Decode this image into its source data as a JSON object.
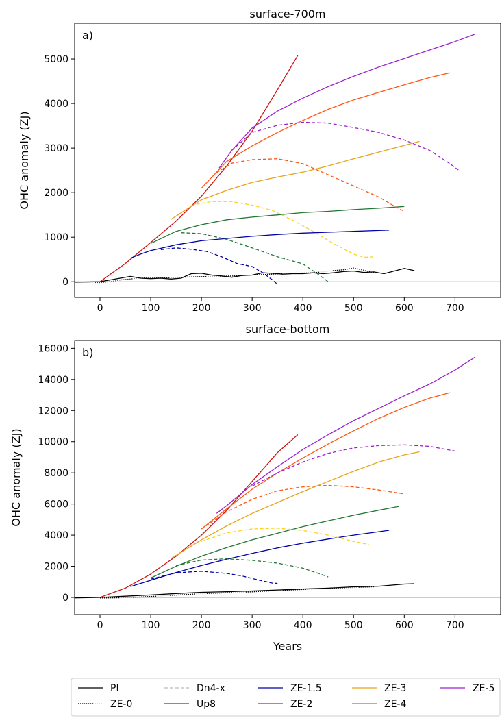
{
  "chart_data": [
    {
      "type": "line",
      "panel_label": "a)",
      "title": "surface-700m",
      "xlabel": "",
      "ylabel": "OHC anomaly (ZJ)",
      "xlim": [
        -50,
        790
      ],
      "ylim": [
        -350,
        5800
      ],
      "xticks": [
        0,
        100,
        200,
        300,
        400,
        500,
        600,
        700
      ],
      "yticks": [
        0,
        1000,
        2000,
        3000,
        4000,
        5000
      ],
      "series": [
        {
          "name": "PI",
          "color": "#000000",
          "dash": "solid",
          "x": [
            -50,
            0,
            20,
            40,
            60,
            80,
            100,
            120,
            140,
            160,
            180,
            200,
            220,
            240,
            260,
            280,
            300,
            320,
            340,
            360,
            380,
            400,
            420,
            440,
            460,
            480,
            500,
            520,
            540,
            560,
            580,
            600,
            620
          ],
          "y": [
            -10,
            0,
            40,
            80,
            120,
            80,
            70,
            80,
            60,
            80,
            180,
            190,
            150,
            130,
            100,
            140,
            150,
            200,
            190,
            170,
            180,
            180,
            200,
            180,
            200,
            230,
            240,
            210,
            220,
            180,
            240,
            300,
            250
          ]
        },
        {
          "name": "ZE-0",
          "color": "#000000",
          "dash": "dotted",
          "x": [
            -10,
            0,
            20,
            40,
            60,
            80,
            100,
            140,
            180,
            220,
            260,
            300,
            340,
            380,
            420,
            460,
            480,
            500,
            520,
            540
          ],
          "y": [
            -20,
            -20,
            0,
            40,
            60,
            90,
            80,
            90,
            110,
            120,
            130,
            150,
            170,
            190,
            200,
            250,
            270,
            310,
            260,
            200
          ]
        },
        {
          "name": "Dn4-x",
          "color": "#bbbbbb",
          "dash": "dashed",
          "x": [],
          "y": []
        },
        {
          "name": "Up8",
          "color": "#cc1111",
          "dash": "solid",
          "x": [
            0,
            50,
            100,
            150,
            200,
            250,
            300,
            350,
            390
          ],
          "y": [
            0,
            410,
            880,
            1360,
            1920,
            2600,
            3380,
            4310,
            5080
          ]
        },
        {
          "name": "ZE-1.5",
          "color": "#0000aa",
          "dash": "solid",
          "x": [
            60,
            80,
            100,
            150,
            200,
            250,
            300,
            350,
            400,
            450,
            500,
            550,
            570
          ],
          "y": [
            530,
            620,
            700,
            830,
            920,
            970,
            1020,
            1060,
            1090,
            1110,
            1130,
            1150,
            1160
          ]
        },
        {
          "name": "ZE-1.5 ramp-down",
          "color": "#0000aa",
          "dash": "dashed",
          "x": [
            120,
            150,
            180,
            210,
            240,
            270,
            300,
            320,
            340,
            350
          ],
          "y": [
            720,
            760,
            730,
            680,
            560,
            410,
            340,
            210,
            40,
            -60
          ]
        },
        {
          "name": "ZE-2",
          "color": "#227733",
          "dash": "solid",
          "x": [
            100,
            150,
            200,
            250,
            300,
            350,
            400,
            450,
            500,
            550,
            600
          ],
          "y": [
            860,
            1130,
            1280,
            1390,
            1450,
            1500,
            1550,
            1580,
            1620,
            1650,
            1690
          ]
        },
        {
          "name": "ZE-2 ramp-down",
          "color": "#227733",
          "dash": "dashed",
          "x": [
            160,
            200,
            250,
            300,
            350,
            400,
            430,
            450
          ],
          "y": [
            1100,
            1080,
            950,
            760,
            560,
            400,
            170,
            0
          ]
        },
        {
          "name": "ZE-3",
          "color": "#e8a317",
          "dash": "solid",
          "x": [
            140,
            200,
            250,
            300,
            350,
            400,
            450,
            500,
            550,
            600,
            630
          ],
          "y": [
            1400,
            1840,
            2050,
            2230,
            2350,
            2460,
            2600,
            2760,
            2910,
            3060,
            3150
          ]
        },
        {
          "name": "ZE-3 ramp-down",
          "color": "#ffd21f",
          "dash": "dashed",
          "x": [
            190,
            220,
            260,
            300,
            340,
            380,
            420,
            460,
            500,
            520,
            540
          ],
          "y": [
            1740,
            1800,
            1800,
            1720,
            1600,
            1380,
            1130,
            860,
            620,
            550,
            560
          ]
        },
        {
          "name": "ZE-4",
          "color": "#ff5511",
          "dash": "solid",
          "x": [
            200,
            250,
            300,
            350,
            400,
            450,
            500,
            550,
            600,
            650,
            690
          ],
          "y": [
            2100,
            2700,
            3050,
            3350,
            3620,
            3870,
            4080,
            4250,
            4420,
            4580,
            4690
          ]
        },
        {
          "name": "ZE-4 ramp-down",
          "color": "#ff5511",
          "dash": "dashed",
          "x": [
            230,
            260,
            300,
            350,
            400,
            450,
            500,
            550,
            580,
            600
          ],
          "y": [
            2450,
            2660,
            2740,
            2760,
            2650,
            2400,
            2150,
            1900,
            1700,
            1580
          ]
        },
        {
          "name": "ZE-5",
          "color": "#9a22cc",
          "dash": "solid",
          "x": [
            235,
            260,
            300,
            350,
            400,
            450,
            500,
            550,
            600,
            650,
            700,
            740
          ],
          "y": [
            2550,
            2950,
            3450,
            3830,
            4120,
            4380,
            4610,
            4820,
            5010,
            5200,
            5390,
            5560
          ]
        },
        {
          "name": "ZE-5 ramp-down",
          "color": "#9a22cc",
          "dash": "dashed",
          "x": [
            260,
            300,
            350,
            400,
            450,
            500,
            550,
            600,
            650,
            690,
            710
          ],
          "y": [
            2950,
            3350,
            3510,
            3580,
            3560,
            3460,
            3350,
            3180,
            2950,
            2650,
            2480
          ]
        }
      ]
    },
    {
      "type": "line",
      "panel_label": "b)",
      "title": "surface-bottom",
      "xlabel": "Years",
      "ylabel": "OHC anomaly (ZJ)",
      "xlim": [
        -50,
        790
      ],
      "ylim": [
        -1100,
        16500
      ],
      "xticks": [
        0,
        100,
        200,
        300,
        400,
        500,
        600,
        700
      ],
      "yticks": [
        0,
        2000,
        4000,
        6000,
        8000,
        10000,
        12000,
        14000,
        16000
      ],
      "series": [
        {
          "name": "PI",
          "color": "#000000",
          "dash": "solid",
          "x": [
            -50,
            0,
            50,
            100,
            150,
            200,
            250,
            300,
            350,
            400,
            450,
            500,
            550,
            600,
            620
          ],
          "y": [
            -30,
            0,
            80,
            160,
            250,
            330,
            370,
            420,
            480,
            540,
            600,
            680,
            720,
            860,
            880
          ]
        },
        {
          "name": "ZE-0",
          "color": "#000000",
          "dash": "dotted",
          "x": [
            0,
            50,
            100,
            150,
            200,
            250,
            300,
            350,
            400,
            450,
            500,
            540
          ],
          "y": [
            -40,
            -20,
            60,
            150,
            240,
            300,
            360,
            440,
            510,
            590,
            640,
            680
          ]
        },
        {
          "name": "Dn4-x",
          "color": "#bbbbbb",
          "dash": "dashed",
          "x": [],
          "y": []
        },
        {
          "name": "Up8",
          "color": "#cc1111",
          "dash": "solid",
          "x": [
            0,
            50,
            100,
            150,
            200,
            250,
            300,
            350,
            390
          ],
          "y": [
            0,
            600,
            1500,
            2650,
            4000,
            5600,
            7450,
            9300,
            10450
          ]
        },
        {
          "name": "ZE-1.5",
          "color": "#0000aa",
          "dash": "solid",
          "x": [
            60,
            100,
            150,
            200,
            250,
            300,
            350,
            400,
            450,
            500,
            550,
            570
          ],
          "y": [
            700,
            1100,
            1600,
            2050,
            2450,
            2830,
            3180,
            3480,
            3750,
            4000,
            4220,
            4310
          ]
        },
        {
          "name": "ZE-1.5 ramp-down",
          "color": "#0000aa",
          "dash": "dashed",
          "x": [
            100,
            150,
            200,
            250,
            280,
            310,
            340,
            350
          ],
          "y": [
            1180,
            1580,
            1680,
            1540,
            1380,
            1140,
            920,
            900
          ]
        },
        {
          "name": "ZE-2",
          "color": "#227733",
          "dash": "solid",
          "x": [
            100,
            150,
            200,
            250,
            300,
            350,
            400,
            450,
            500,
            550,
            590
          ],
          "y": [
            1250,
            2000,
            2650,
            3200,
            3700,
            4120,
            4550,
            4920,
            5280,
            5600,
            5850
          ]
        },
        {
          "name": "ZE-2 ramp-down",
          "color": "#227733",
          "dash": "dashed",
          "x": [
            150,
            200,
            250,
            300,
            350,
            400,
            430,
            450
          ],
          "y": [
            2050,
            2400,
            2480,
            2380,
            2200,
            1880,
            1550,
            1320
          ]
        },
        {
          "name": "ZE-3",
          "color": "#e8a317",
          "dash": "solid",
          "x": [
            140,
            200,
            250,
            300,
            350,
            400,
            450,
            500,
            550,
            600,
            630
          ],
          "y": [
            2500,
            3700,
            4600,
            5400,
            6100,
            6800,
            7450,
            8100,
            8700,
            9150,
            9350
          ]
        },
        {
          "name": "ZE-3 ramp-down",
          "color": "#ffd21f",
          "dash": "dashed",
          "x": [
            200,
            250,
            300,
            350,
            400,
            450,
            500,
            530
          ],
          "y": [
            3600,
            4150,
            4400,
            4450,
            4300,
            4000,
            3600,
            3400
          ]
        },
        {
          "name": "ZE-4",
          "color": "#ff5511",
          "dash": "solid",
          "x": [
            200,
            250,
            300,
            350,
            400,
            450,
            500,
            550,
            600,
            650,
            690
          ],
          "y": [
            4400,
            5700,
            6950,
            8000,
            8950,
            9850,
            10700,
            11500,
            12200,
            12800,
            13150
          ]
        },
        {
          "name": "ZE-4 ramp-down",
          "color": "#ff5511",
          "dash": "dashed",
          "x": [
            200,
            250,
            300,
            350,
            400,
            450,
            500,
            550,
            600
          ],
          "y": [
            4400,
            5500,
            6300,
            6850,
            7100,
            7200,
            7100,
            6900,
            6650
          ]
        },
        {
          "name": "ZE-5",
          "color": "#9a22cc",
          "dash": "solid",
          "x": [
            230,
            250,
            300,
            350,
            400,
            450,
            500,
            550,
            600,
            650,
            700,
            740
          ],
          "y": [
            5400,
            5900,
            7250,
            8400,
            9500,
            10450,
            11350,
            12150,
            12950,
            13700,
            14600,
            15450
          ]
        },
        {
          "name": "ZE-5 ramp-down",
          "color": "#9a22cc",
          "dash": "dashed",
          "x": [
            300,
            350,
            400,
            450,
            500,
            550,
            600,
            650,
            700
          ],
          "y": [
            7150,
            8000,
            8700,
            9250,
            9600,
            9750,
            9800,
            9700,
            9400
          ]
        }
      ]
    }
  ],
  "legend": {
    "placement": "bottom",
    "entries": [
      {
        "label": "PI",
        "color": "#000000",
        "dash": "solid"
      },
      {
        "label": "ZE-0",
        "color": "#000000",
        "dash": "dotted"
      },
      {
        "label": "Dn4-x",
        "color": "#bbbbbb",
        "dash": "dashed"
      },
      {
        "label": "Up8",
        "color": "#cc1111",
        "dash": "solid"
      },
      {
        "label": "ZE-1.5",
        "color": "#0000aa",
        "dash": "solid"
      },
      {
        "label": "ZE-2",
        "color": "#227733",
        "dash": "solid"
      },
      {
        "label": "ZE-3",
        "color": "#e8a317",
        "dash": "solid"
      },
      {
        "label": "ZE-4",
        "color": "#ff5511",
        "dash": "solid"
      },
      {
        "label": "ZE-5",
        "color": "#9a22cc",
        "dash": "solid"
      }
    ]
  }
}
